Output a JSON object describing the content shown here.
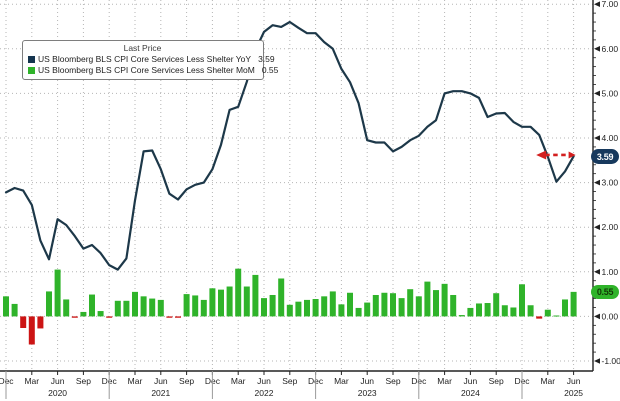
{
  "legend": {
    "title": "Last Price",
    "rows": [
      {
        "label": "US Bloomberg BLS CPI Core Services Less Shelter YoY",
        "value": "3.59"
      },
      {
        "label": "US Bloomberg BLS CPI Core Services Less Shelter MoM",
        "value": "0.55"
      }
    ]
  },
  "badges": {
    "yoy": "3.59",
    "mom": "0.55"
  },
  "colors": {
    "yoy_line": "#1d3849",
    "yoy_swatch": "#14344e",
    "mom_green": "#2fb32a",
    "mom_red": "#cc1414",
    "badge_yoy_bg": "#17395d",
    "badge_yoy_fg": "#ffffff",
    "badge_mom_bg": "#2fb32a",
    "badge_mom_fg": "#123a06",
    "grid": "#b5b5b5",
    "axis": "#222222",
    "arrow_red": "#d31f1f",
    "background": "#ffffff"
  },
  "chart_data": {
    "type": "line",
    "subtype": "line-with-bar-subseries",
    "title": "",
    "x_start": "Dec 2019",
    "x_end": "Jun 2025",
    "x_frequency": "monthly",
    "y_axis": {
      "side": "right",
      "min": -1.0,
      "max": 7.0,
      "major_step": 1.0,
      "tick_labels": [
        "7.00",
        "6.00",
        "5.00",
        "4.00",
        "3.00",
        "2.00",
        "1.00",
        "0.00",
        "-1.00"
      ]
    },
    "x_axis": {
      "quarter_tick_labels": [
        "Dec",
        "Mar",
        "Jun",
        "Sep",
        "Dec",
        "Mar",
        "Jun",
        "Sep",
        "Dec",
        "Mar",
        "Jun",
        "Sep",
        "Dec",
        "Mar",
        "Jun",
        "Sep",
        "Dec",
        "Mar",
        "Jun",
        "Sep",
        "Dec",
        "Mar",
        "Jun"
      ],
      "year_labels": {
        "6": "2020",
        "18": "2021",
        "30": "2022",
        "42": "2023",
        "54": "2024",
        "66": "2025"
      }
    },
    "grid": "dotted-both-axes",
    "legend_position": "top-left",
    "series": [
      {
        "name": "US Bloomberg BLS CPI Core Services Less Shelter YoY",
        "type": "line",
        "last_price": 3.59,
        "values": [
          2.78,
          2.88,
          2.82,
          2.5,
          1.7,
          1.28,
          2.18,
          2.05,
          1.8,
          1.52,
          1.6,
          1.42,
          1.15,
          1.05,
          1.3,
          2.6,
          3.7,
          3.72,
          3.3,
          2.75,
          2.62,
          2.85,
          2.95,
          3.0,
          3.3,
          3.85,
          4.63,
          4.7,
          5.26,
          5.97,
          6.38,
          6.53,
          6.49,
          6.6,
          6.47,
          6.35,
          6.35,
          6.15,
          6.0,
          5.55,
          5.25,
          4.78,
          3.95,
          3.9,
          3.9,
          3.7,
          3.8,
          3.95,
          4.05,
          4.25,
          4.4,
          5.0,
          5.05,
          5.05,
          5.0,
          4.9,
          4.47,
          4.55,
          4.56,
          4.36,
          4.25,
          4.25,
          4.07,
          3.58,
          3.02,
          3.25,
          3.59
        ]
      },
      {
        "name": "US Bloomberg BLS CPI Core Services Less Shelter MoM",
        "type": "bar",
        "last_price": 0.55,
        "values": [
          0.45,
          0.28,
          -0.26,
          -0.63,
          -0.27,
          0.56,
          1.05,
          0.38,
          -0.03,
          0.1,
          0.49,
          0.12,
          -0.03,
          0.35,
          0.35,
          0.55,
          0.45,
          0.4,
          0.37,
          -0.03,
          -0.03,
          0.5,
          0.47,
          0.37,
          0.63,
          0.6,
          0.67,
          1.07,
          0.67,
          0.93,
          0.41,
          0.48,
          0.85,
          0.26,
          0.33,
          0.37,
          0.39,
          0.45,
          0.56,
          0.27,
          0.53,
          0.19,
          0.31,
          0.48,
          0.53,
          0.52,
          0.41,
          0.61,
          0.45,
          0.78,
          0.59,
          0.73,
          0.48,
          0.03,
          0.19,
          0.29,
          0.3,
          0.52,
          0.25,
          0.2,
          0.72,
          0.25,
          -0.05,
          0.15,
          0.02,
          0.38,
          0.55
        ]
      }
    ],
    "annotations": [
      {
        "type": "double-arrow",
        "y_value": 3.62,
        "from_month_index": 62,
        "to_month_index": 66,
        "description": "red dashed horizontal double-headed arrow at last price level"
      }
    ]
  }
}
